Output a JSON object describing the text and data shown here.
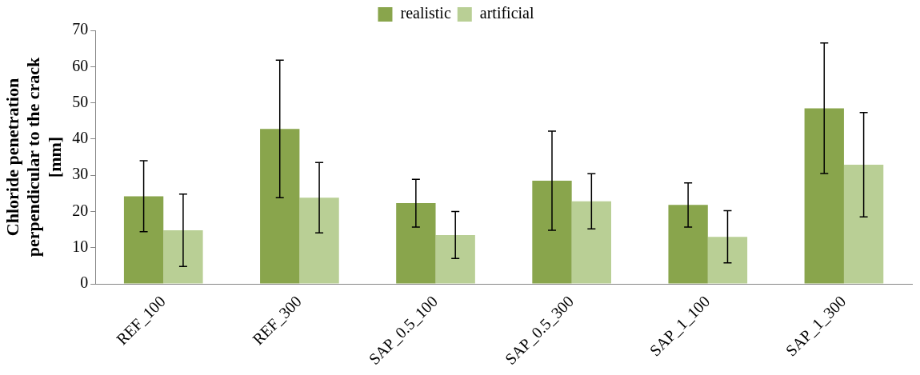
{
  "chart_data": {
    "type": "bar",
    "ylabel": "Chloride penetration perpendicular to the crack [mm]",
    "categories": [
      "REF_100",
      "REF_300",
      "SAP_0.5_100",
      "SAP_0.5_300",
      "SAP_1_100",
      "SAP_1_300"
    ],
    "series": [
      {
        "name": "realistic",
        "color": "#89a54c",
        "values": [
          24.2,
          42.8,
          22.3,
          28.5,
          21.8,
          48.5
        ],
        "errors": [
          9.8,
          19,
          6.6,
          13.7,
          6.1,
          18
        ]
      },
      {
        "name": "artificial",
        "color": "#b9cf95",
        "values": [
          14.8,
          23.8,
          13.5,
          22.8,
          13,
          32.9
        ],
        "errors": [
          10,
          9.7,
          6.5,
          7.6,
          7.2,
          14.4
        ]
      }
    ],
    "ylim": [
      0,
      70
    ],
    "yticks": [
      0,
      10,
      20,
      30,
      40,
      50,
      60,
      70
    ],
    "grid": false,
    "legend": "top"
  }
}
